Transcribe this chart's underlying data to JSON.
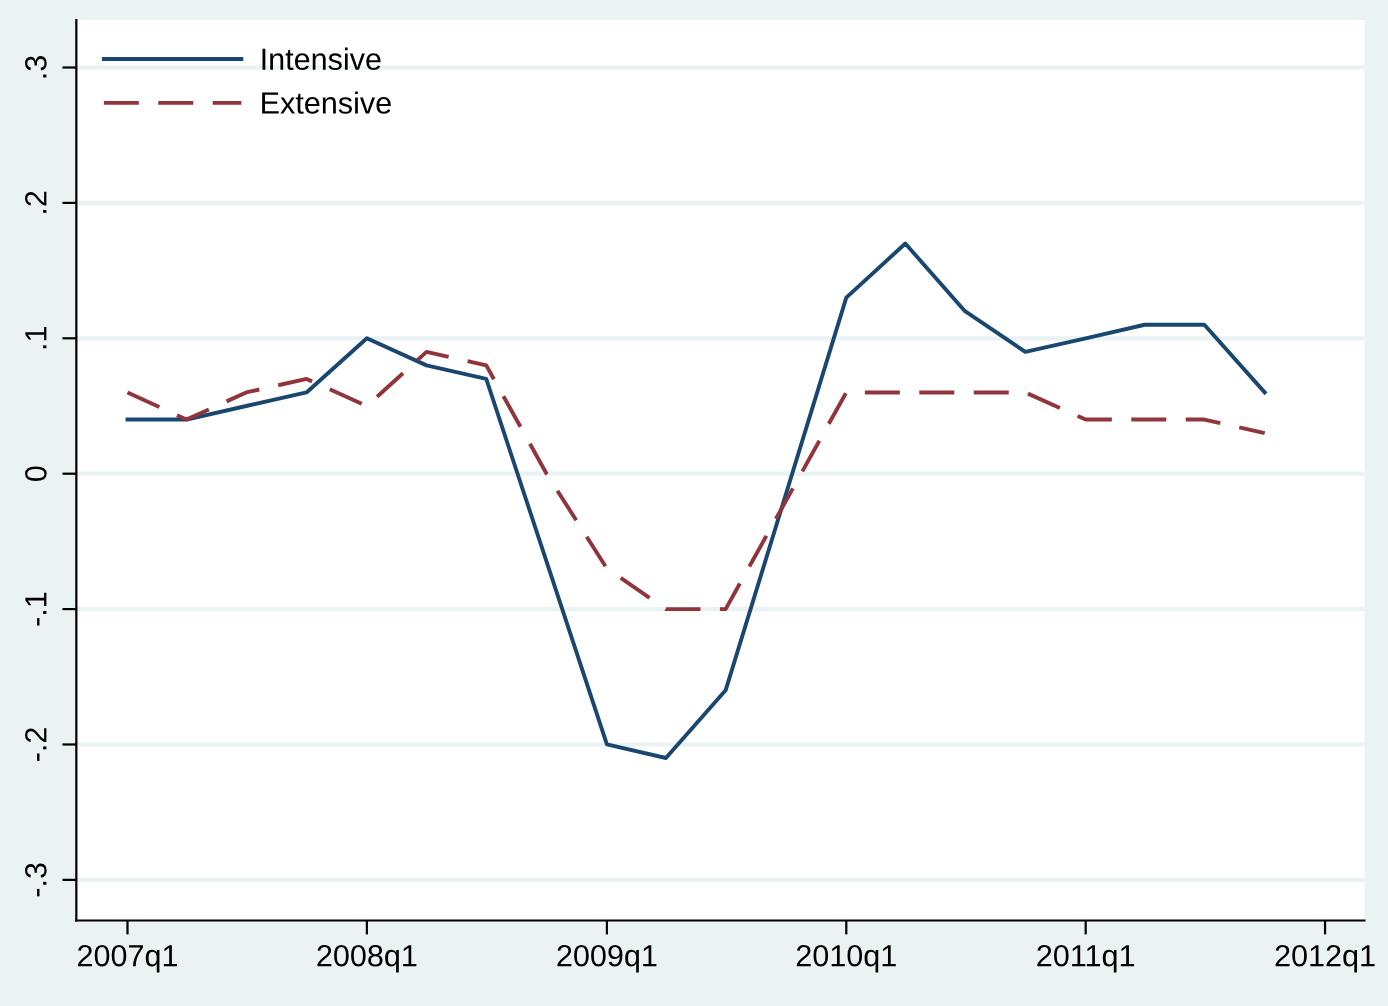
{
  "chart_data": {
    "type": "line",
    "series": [
      {
        "name": "Intensive",
        "color": "#1a476f",
        "line_style": "solid",
        "x": [
          "2007-01",
          "2007-04",
          "2007-07",
          "2007-10",
          "2008-01",
          "2008-04",
          "2008-07",
          "2009-01",
          "2009-04",
          "2009-07",
          "2010-01",
          "2010-04",
          "2010-07",
          "2010-10",
          "2011-01",
          "2011-04",
          "2011-07",
          "2011-10"
        ],
        "values": [
          0.04,
          0.04,
          0.05,
          0.06,
          0.1,
          0.08,
          0.07,
          -0.2,
          -0.21,
          -0.16,
          0.13,
          0.17,
          0.12,
          0.09,
          0.1,
          0.11,
          0.11,
          0.06
        ]
      },
      {
        "name": "Extensive",
        "color": "#90353b",
        "line_style": "dashed",
        "x": [
          "2007-01",
          "2007-04",
          "2007-07",
          "2007-10",
          "2008-01",
          "2008-04",
          "2008-07",
          "2008-10",
          "2009-01",
          "2009-04",
          "2009-07",
          "2010-01",
          "2010-04",
          "2010-07",
          "2010-10",
          "2011-01",
          "2011-04",
          "2011-07",
          "2011-10"
        ],
        "values": [
          0.06,
          0.04,
          0.06,
          0.07,
          0.05,
          0.09,
          0.08,
          0.0,
          -0.07,
          -0.1,
          -0.1,
          0.06,
          0.06,
          0.06,
          0.06,
          0.04,
          0.04,
          0.04,
          0.03
        ]
      }
    ],
    "xlim": [
      "2006-10-15",
      "2012-03-01"
    ],
    "xticks": [
      {
        "value": "2007-01",
        "label": "2007q1"
      },
      {
        "value": "2008-01",
        "label": "2008q1"
      },
      {
        "value": "2009-01",
        "label": "2009q1"
      },
      {
        "value": "2010-01",
        "label": "2010q1"
      },
      {
        "value": "2011-01",
        "label": "2011q1"
      },
      {
        "value": "2012-01",
        "label": "2012q1"
      }
    ],
    "ylim": [
      -0.33,
      0.335
    ],
    "yticks": [
      {
        "value": -0.3,
        "label": "-.3"
      },
      {
        "value": -0.2,
        "label": "-.2"
      },
      {
        "value": -0.1,
        "label": "-.1"
      },
      0,
      {
        "value": 0.1,
        "label": ".1"
      },
      {
        "value": 0.2,
        "label": ".2"
      },
      {
        "value": 0.3,
        "label": ".3"
      }
    ],
    "grid": "y",
    "legend": "top left",
    "marker": "none"
  }
}
